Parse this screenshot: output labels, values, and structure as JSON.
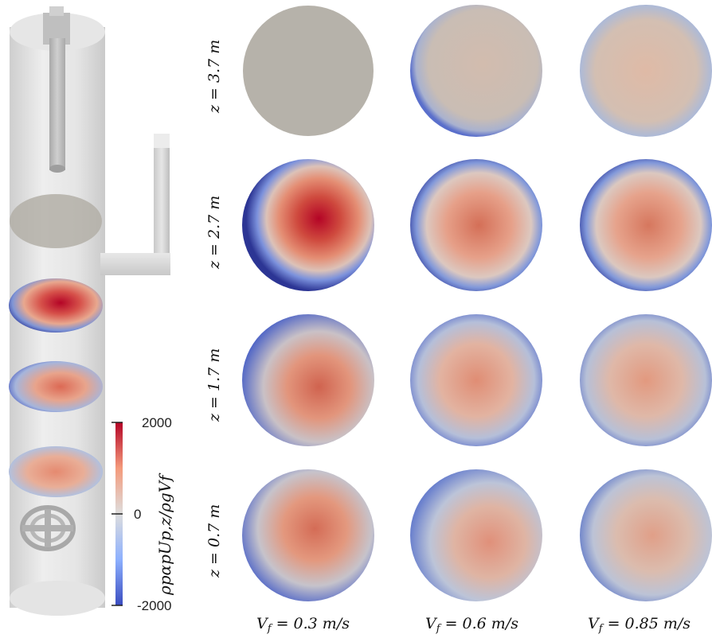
{
  "colorbar": {
    "max_label": "2000",
    "mid_label": "0",
    "min_label": "-2000",
    "quantity_label": "ρpαpUp,z/ρgVf",
    "colors": [
      "#3a4cc0",
      "#8db0fe",
      "#dddddd",
      "#f49a7b",
      "#b40426"
    ]
  },
  "row_labels": [
    "z = 3.7 m",
    "z = 2.7 m",
    "z = 1.7 m",
    "z = 0.7 m"
  ],
  "col_labels": [
    "V_f = 0.3 m/s",
    "V_f = 0.6 m/s",
    "V_f = 0.85 m/s"
  ],
  "col_label_parts": [
    {
      "sym": "V",
      "sub": "f",
      "rest": " = 0.3 m/s"
    },
    {
      "sym": "V",
      "sub": "f",
      "rest": " = 0.6 m/s"
    },
    {
      "sym": "V",
      "sub": "f",
      "rest": " = 0.85 m/s"
    }
  ],
  "colors": {
    "rim_blue": "#3b4cc0",
    "core_red": "#b40426",
    "neutral_gray": "#b6b2aa",
    "column_gray": "#d5d5d5"
  }
}
